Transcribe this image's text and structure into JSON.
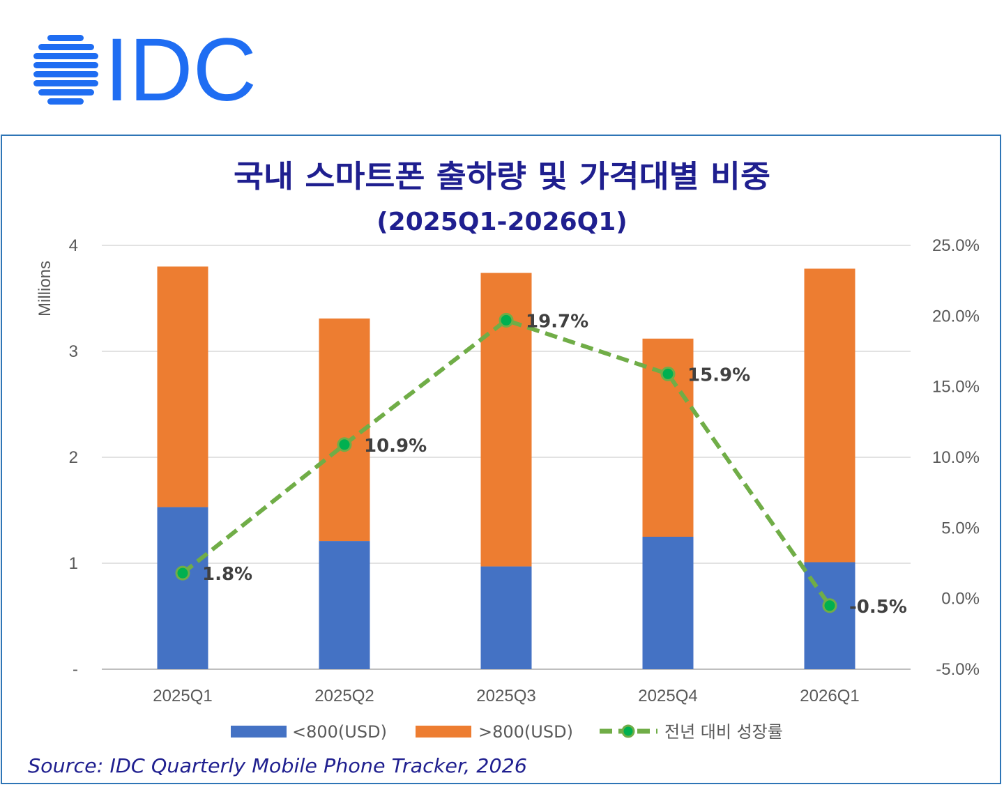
{
  "logo": {
    "text": "IDC"
  },
  "chart_data": {
    "type": "bar",
    "stacked": true,
    "title": "국내 스마트폰 출하량 및 가격대별 비중",
    "subtitle": "(2025Q1-2026Q1)",
    "ylabel": "Millions",
    "ylim": [
      0,
      4
    ],
    "y_ticks": [
      "-",
      "1",
      "2",
      "3",
      "4"
    ],
    "y2lim": [
      -0.05,
      0.25
    ],
    "y2_ticks": [
      "-5.0%",
      "0.0%",
      "5.0%",
      "10.0%",
      "15.0%",
      "20.0%",
      "25.0%"
    ],
    "categories": [
      "2025Q1",
      "2025Q2",
      "2025Q3",
      "2025Q4",
      "2026Q1"
    ],
    "grid": true,
    "legend_position": "bottom",
    "series": [
      {
        "name": "<800(USD)",
        "type": "bar",
        "axis": "left",
        "color": "#4472c4",
        "values": [
          1.53,
          1.21,
          0.97,
          1.25,
          1.01
        ]
      },
      {
        "name": ">800(USD)",
        "type": "bar",
        "axis": "left",
        "color": "#ed7d31",
        "values": [
          2.27,
          2.1,
          2.77,
          1.87,
          2.77
        ]
      },
      {
        "name": "전년 대비 성장률",
        "type": "line",
        "axis": "right",
        "color": "#70ad47",
        "marker_color": "#00b050",
        "values": [
          0.018,
          0.109,
          0.197,
          0.159,
          -0.005
        ],
        "labels": [
          "1.8%",
          "10.9%",
          "19.7%",
          "15.9%",
          "-0.5%"
        ]
      }
    ]
  },
  "source": "Source: IDC Quarterly Mobile Phone Tracker, 2026"
}
